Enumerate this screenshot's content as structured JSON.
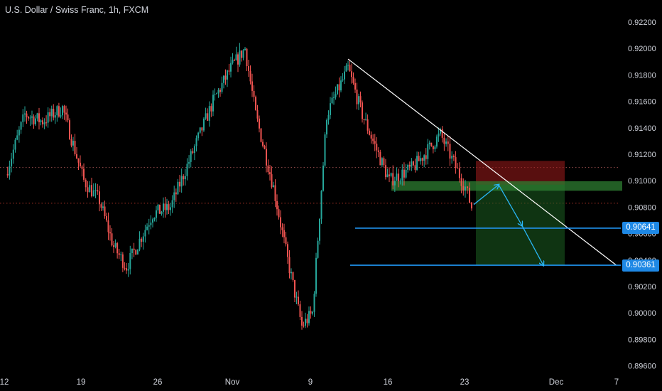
{
  "symbol": {
    "title": "U.S. Dollar / Swiss Franc, 1h, FXCM"
  },
  "colors": {
    "background": "#000000",
    "bull_candle": "#26a69a",
    "bear_candle": "#ef5350",
    "trendline": "#ffffff",
    "horizontal_lines": "#2196f3",
    "price_tag": "#1e88e5",
    "stop_zone": "#a01c1c",
    "target_zone": "#1b5e20",
    "support_zone": "#2e7d32"
  },
  "chart_data": {
    "type": "candlestick",
    "title": "U.S. Dollar / Swiss Franc, 1h, FXCM",
    "xlabel": "",
    "ylabel": "",
    "ylim": [
      0.8956,
      0.9226
    ],
    "y_ticks": [
      "0.92200",
      "0.92000",
      "0.91800",
      "0.91600",
      "0.91400",
      "0.91200",
      "0.91000",
      "0.90800",
      "0.90600",
      "0.90400",
      "0.90200",
      "0.90000",
      "0.89800",
      "0.89600"
    ],
    "x_ticks": [
      "12",
      "19",
      "26",
      "Nov",
      "9",
      "16",
      "23",
      "Dec",
      "7"
    ],
    "price_path": [
      {
        "date": "12",
        "close": 0.9105
      },
      {
        "date": "13",
        "close": 0.915
      },
      {
        "date": "15",
        "close": 0.9145
      },
      {
        "date": "17",
        "close": 0.9155
      },
      {
        "date": "19",
        "close": 0.91
      },
      {
        "date": "20",
        "close": 0.9085
      },
      {
        "date": "22",
        "close": 0.905
      },
      {
        "date": "24",
        "close": 0.9035
      },
      {
        "date": "26",
        "close": 0.9075
      },
      {
        "date": "28",
        "close": 0.908
      },
      {
        "date": "30",
        "close": 0.916
      },
      {
        "date": "Nov",
        "close": 0.9185
      },
      {
        "date": "2",
        "close": 0.92
      },
      {
        "date": "3",
        "close": 0.915
      },
      {
        "date": "5",
        "close": 0.9095
      },
      {
        "date": "6",
        "close": 0.904
      },
      {
        "date": "7",
        "close": 0.899
      },
      {
        "date": "9",
        "close": 0.9
      },
      {
        "date": "10",
        "close": 0.915
      },
      {
        "date": "11",
        "close": 0.9185
      },
      {
        "date": "13",
        "close": 0.915
      },
      {
        "date": "16",
        "close": 0.91
      },
      {
        "date": "19",
        "close": 0.911
      },
      {
        "date": "20",
        "close": 0.9135
      },
      {
        "date": "23",
        "close": 0.9095
      },
      {
        "date": "23",
        "close": 0.908
      }
    ],
    "trendline": {
      "from": {
        "date": "11",
        "price": 0.9192
      },
      "to": {
        "date": "7",
        "price": 0.9036
      }
    },
    "reference_lines": [
      0.911,
      0.9083
    ],
    "support_zone": [
      0.9094,
      0.9098
    ],
    "trade": {
      "stop_zone": [
        0.9097,
        0.9115
      ],
      "target_zone": [
        0.9036,
        0.9097
      ]
    },
    "levels": [
      {
        "value": 0.90641,
        "label": "0.90641"
      },
      {
        "value": 0.90361,
        "label": "0.90361"
      }
    ],
    "projection_path": [
      0.9082,
      0.9097,
      0.9066,
      0.9036
    ]
  }
}
